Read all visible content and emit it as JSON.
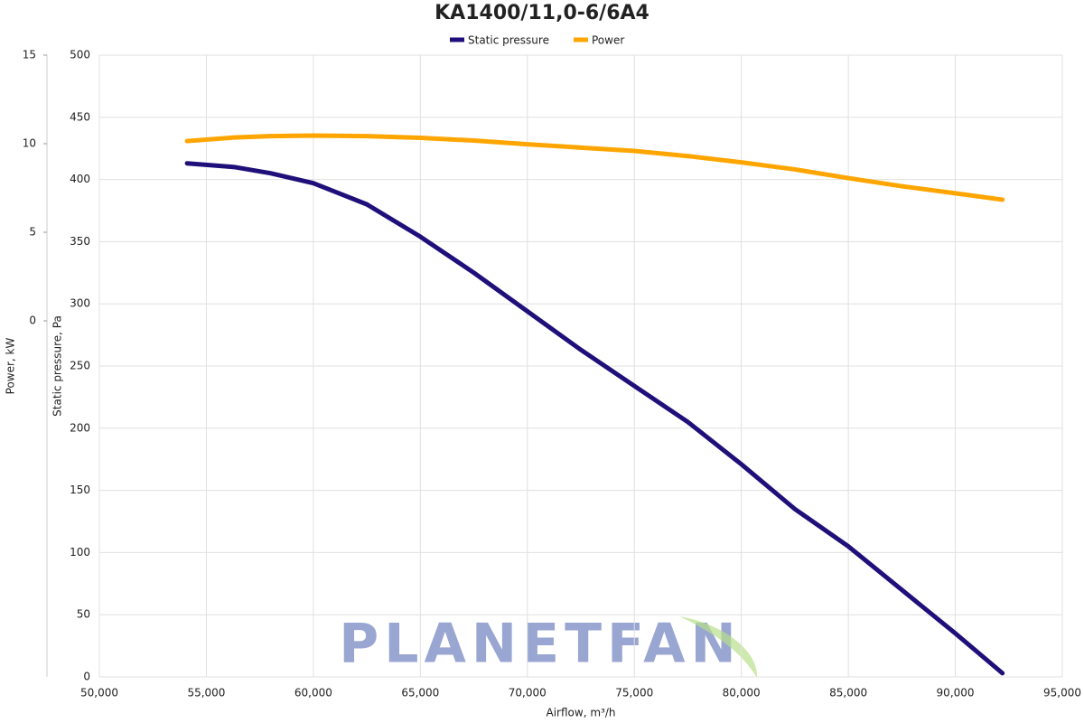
{
  "chart_data": {
    "type": "line",
    "title": "KA1400/11,0-6/6A4",
    "watermark": "PLANETFAN",
    "xlabel": "Airflow, m³/h",
    "ylabel": "Static pressure, Pa",
    "y2label": "Power, kW",
    "x": [
      54100,
      56300,
      58000,
      60000,
      62500,
      65000,
      67500,
      70000,
      72500,
      75000,
      77500,
      80000,
      82500,
      85000,
      87500,
      90000,
      92200
    ],
    "series": [
      {
        "name": "Static pressure",
        "color": "#1f0f7a",
        "values": [
          413,
          410,
          405,
          397,
          380,
          354,
          325,
          294,
          263,
          234,
          205,
          171,
          135,
          105,
          70,
          35,
          3
        ]
      },
      {
        "name": "Power",
        "color": "#ffa500",
        "axis": "y2",
        "values": [
          10.15,
          10.35,
          10.43,
          10.46,
          10.43,
          10.33,
          10.18,
          9.97,
          9.78,
          9.59,
          9.3,
          8.95,
          8.55,
          8.06,
          7.6,
          7.2,
          6.84
        ]
      }
    ],
    "xlim": [
      50000,
      95000
    ],
    "xticks": [
      {
        "value": 50000,
        "label": "50,000"
      },
      {
        "value": 55000,
        "label": "55,000"
      },
      {
        "value": 60000,
        "label": "60,000"
      },
      {
        "value": 65000,
        "label": "65,000"
      },
      {
        "value": 70000,
        "label": "70,000"
      },
      {
        "value": 75000,
        "label": "75,000"
      },
      {
        "value": 80000,
        "label": "80,000"
      },
      {
        "value": 85000,
        "label": "85,000"
      },
      {
        "value": 90000,
        "label": "90,000"
      },
      {
        "value": 95000,
        "label": "95,000"
      }
    ],
    "ylim": [
      0,
      500
    ],
    "yticks": [
      0,
      50,
      100,
      150,
      200,
      250,
      300,
      350,
      400,
      450,
      500
    ],
    "y2lim": [
      -20.1,
      15
    ],
    "y2ticks": [
      0,
      5,
      10,
      15
    ],
    "grid": true,
    "legend": "top"
  }
}
